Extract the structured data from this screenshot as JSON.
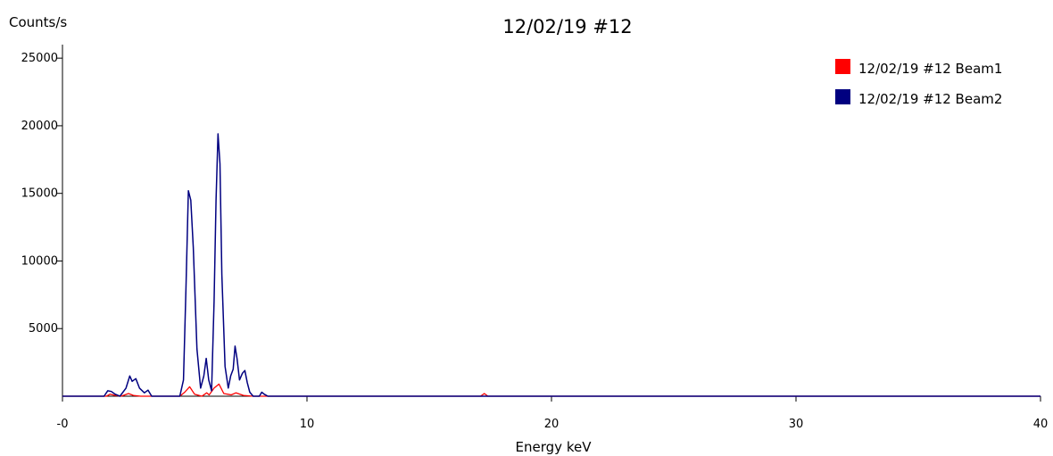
{
  "chart_data": {
    "type": "line",
    "title": "12/02/19 #12",
    "ylabel": "Counts/s",
    "xlabel": "Energy keV",
    "xlim": [
      0,
      40
    ],
    "ylim": [
      0,
      26000
    ],
    "x_ticks": [
      0,
      10,
      20,
      30,
      40
    ],
    "x_tick_labels": [
      "-0",
      "10",
      "20",
      "30",
      "40"
    ],
    "y_ticks": [
      5000,
      10000,
      15000,
      20000,
      25000
    ],
    "y_tick_labels": [
      "5000",
      "10000",
      "15000",
      "20000",
      "25000"
    ],
    "grid": false,
    "legend_position": "top-right",
    "series": [
      {
        "name": "12/02/19 #12 Beam1",
        "color": "#ff0000",
        "points": [
          [
            0,
            0
          ],
          [
            1.8,
            0
          ],
          [
            1.95,
            150
          ],
          [
            2.1,
            80
          ],
          [
            2.4,
            0
          ],
          [
            2.7,
            200
          ],
          [
            2.9,
            60
          ],
          [
            3.2,
            0
          ],
          [
            4.8,
            0
          ],
          [
            5.0,
            300
          ],
          [
            5.2,
            700
          ],
          [
            5.4,
            150
          ],
          [
            5.7,
            0
          ],
          [
            5.9,
            250
          ],
          [
            6.0,
            100
          ],
          [
            6.2,
            600
          ],
          [
            6.4,
            900
          ],
          [
            6.6,
            200
          ],
          [
            6.9,
            100
          ],
          [
            7.1,
            250
          ],
          [
            7.4,
            60
          ],
          [
            7.8,
            0
          ],
          [
            17.1,
            0
          ],
          [
            17.25,
            200
          ],
          [
            17.4,
            0
          ],
          [
            40,
            0
          ]
        ]
      },
      {
        "name": "12/02/19 #12 Beam2",
        "color": "#000080",
        "points": [
          [
            0,
            0
          ],
          [
            1.7,
            0
          ],
          [
            1.85,
            400
          ],
          [
            2.0,
            350
          ],
          [
            2.15,
            150
          ],
          [
            2.35,
            0
          ],
          [
            2.6,
            600
          ],
          [
            2.75,
            1500
          ],
          [
            2.85,
            1100
          ],
          [
            3.0,
            1300
          ],
          [
            3.15,
            600
          ],
          [
            3.35,
            250
          ],
          [
            3.5,
            450
          ],
          [
            3.65,
            0
          ],
          [
            4.5,
            0
          ],
          [
            4.8,
            0
          ],
          [
            4.95,
            1200
          ],
          [
            5.05,
            8000
          ],
          [
            5.15,
            15200
          ],
          [
            5.25,
            14500
          ],
          [
            5.35,
            11000
          ],
          [
            5.5,
            3500
          ],
          [
            5.65,
            600
          ],
          [
            5.78,
            1500
          ],
          [
            5.88,
            2800
          ],
          [
            5.98,
            1200
          ],
          [
            6.1,
            400
          ],
          [
            6.2,
            7000
          ],
          [
            6.28,
            14500
          ],
          [
            6.36,
            19400
          ],
          [
            6.44,
            17200
          ],
          [
            6.52,
            9000
          ],
          [
            6.65,
            2200
          ],
          [
            6.78,
            600
          ],
          [
            6.88,
            1500
          ],
          [
            6.98,
            2000
          ],
          [
            7.06,
            3700
          ],
          [
            7.14,
            2800
          ],
          [
            7.24,
            1200
          ],
          [
            7.36,
            1700
          ],
          [
            7.46,
            1900
          ],
          [
            7.56,
            1000
          ],
          [
            7.66,
            300
          ],
          [
            7.8,
            0
          ],
          [
            8.05,
            0
          ],
          [
            8.15,
            300
          ],
          [
            8.25,
            150
          ],
          [
            8.4,
            0
          ],
          [
            40,
            0
          ]
        ]
      }
    ]
  }
}
